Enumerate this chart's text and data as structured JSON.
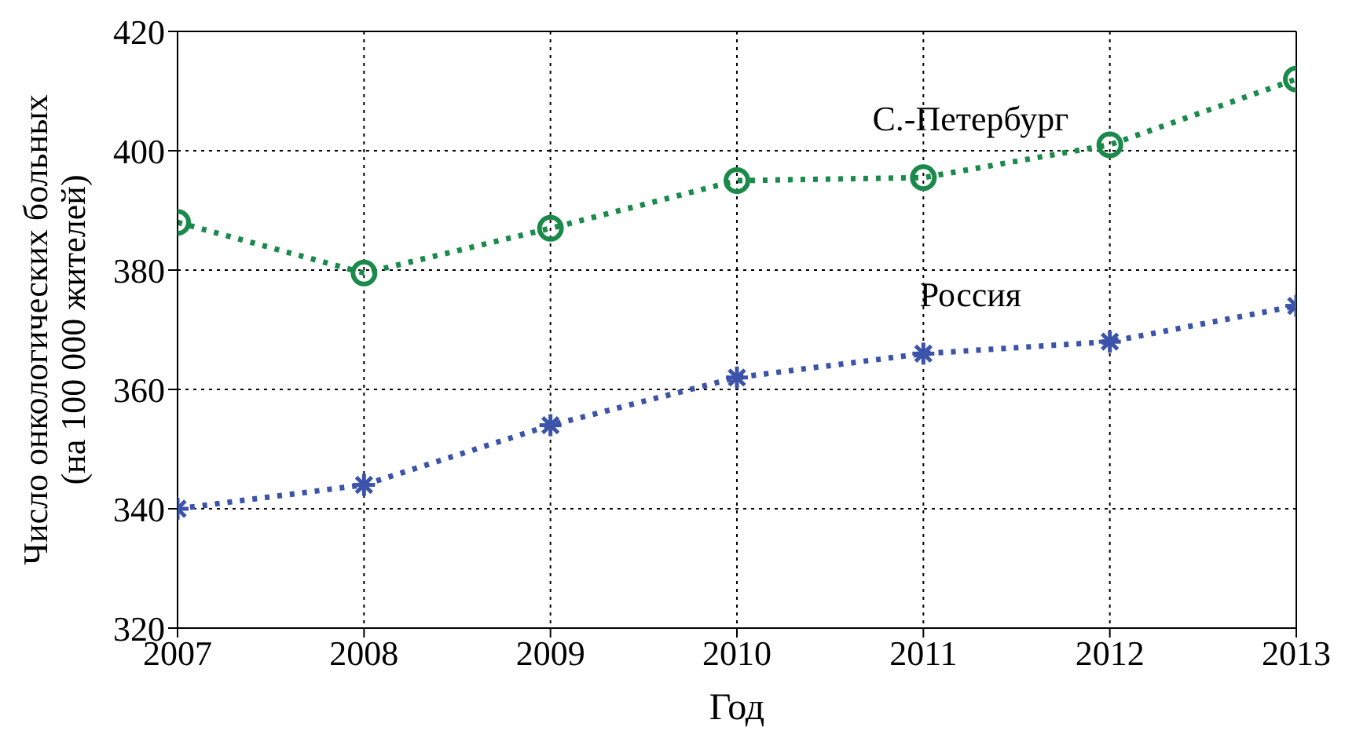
{
  "chart_data": {
    "type": "line",
    "xlabel": "Год",
    "ylabel": "Число онкологических больных\n(на 100 000 жителей)",
    "x": [
      2007,
      2008,
      2009,
      2010,
      2011,
      2012,
      2013
    ],
    "xlim": [
      2007,
      2013
    ],
    "xticks": [
      2007,
      2008,
      2009,
      2010,
      2011,
      2012,
      2013
    ],
    "ylim": [
      320,
      420
    ],
    "yticks": [
      320,
      340,
      360,
      380,
      400,
      420
    ],
    "grid": true,
    "line_style": "dotted",
    "series": [
      {
        "name": "С.-Петербург",
        "color": "#1a8a4a",
        "marker": "circle",
        "values": [
          388,
          379.5,
          387,
          395,
          395.5,
          401,
          412
        ]
      },
      {
        "name": "Россия",
        "color": "#3b53a8",
        "marker": "cross",
        "values": [
          340,
          344,
          354,
          362,
          366,
          368,
          374
        ]
      }
    ]
  }
}
